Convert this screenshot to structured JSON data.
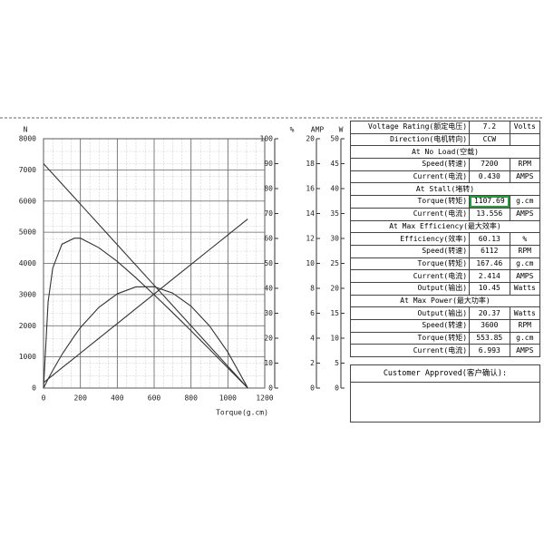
{
  "chart_data": {
    "type": "line",
    "xlabel": "Torque(g.cm)",
    "x": [
      0,
      25,
      50,
      100,
      167.46,
      200,
      300,
      400,
      500,
      600,
      700,
      800,
      900,
      1000,
      1100,
      1107.69
    ],
    "xlim": [
      0,
      1200
    ],
    "xticks": [
      0,
      200,
      400,
      600,
      800,
      1000,
      1200
    ],
    "ylabel": "N",
    "ylim": [
      0,
      8000
    ],
    "yticks": [
      0,
      1000,
      2000,
      3000,
      4000,
      5000,
      6000,
      7000,
      8000
    ],
    "y2label": "%",
    "y2lim": [
      0,
      100
    ],
    "y2ticks": [
      0,
      10,
      20,
      30,
      40,
      50,
      60,
      70,
      80,
      90,
      100
    ],
    "y3label": "AMP",
    "y3lim": [
      0,
      20
    ],
    "y3ticks": [
      0,
      2,
      4,
      6,
      8,
      10,
      12,
      14,
      16,
      18,
      20
    ],
    "y4label": "W",
    "y4lim": [
      0,
      50
    ],
    "y4ticks": [
      0,
      5,
      10,
      15,
      20,
      25,
      30,
      35,
      40,
      45,
      50
    ],
    "grid": true,
    "series": [
      {
        "color": "#333333",
        "axis": "y",
        "values": [
          7200,
          7037,
          6875,
          6550,
          6112,
          5900,
          5250,
          4600,
          3950,
          3300,
          2650,
          2000,
          1350,
          700,
          50,
          0
        ]
      },
      {
        "color": "#333333",
        "axis": "y3",
        "values": [
          0.43,
          0.73,
          1.02,
          1.62,
          2.41,
          2.8,
          3.99,
          5.17,
          6.36,
          7.54,
          8.73,
          9.91,
          11.1,
          12.28,
          13.47,
          13.56
        ]
      },
      {
        "color": "#333333",
        "axis": "y2",
        "values": [
          0,
          34.6,
          48.1,
          57.7,
          60.1,
          60.1,
          56.3,
          50.8,
          44.3,
          37.4,
          30.3,
          23.0,
          15.6,
          8.1,
          0.6,
          0
        ]
      },
      {
        "color": "#333333",
        "axis": "y4",
        "values": [
          0,
          1.81,
          3.53,
          6.73,
          10.45,
          12.12,
          16.17,
          18.9,
          20.28,
          20.33,
          19.05,
          16.43,
          12.48,
          7.19,
          0.56,
          0
        ]
      }
    ]
  },
  "table": {
    "rows": [
      [
        "Voltage Rating(额定电压)",
        "7.2",
        "Volts"
      ],
      [
        "Direction(电机转向)",
        "CCW",
        ""
      ],
      [
        "At No Load(空载)"
      ],
      [
        "Speed(转速)",
        "7200",
        "RPM"
      ],
      [
        "Current(电流)",
        "0.430",
        "AMPS"
      ],
      [
        "At Stall(堵转)"
      ],
      [
        "Torque(转矩)",
        "1107.69",
        "g.cm"
      ],
      [
        "Current(电流)",
        "13.556",
        "AMPS"
      ],
      [
        "At Max Efficiency(最大效率)"
      ],
      [
        "Efficiency(效率)",
        "60.13",
        "%"
      ],
      [
        "Speed(转速)",
        "6112",
        "RPM"
      ],
      [
        "Torque(转矩)",
        "167.46",
        "g.cm"
      ],
      [
        "Current(电流)",
        "2.414",
        "AMPS"
      ],
      [
        "Output(输出)",
        "10.45",
        "Watts"
      ],
      [
        "At Max Power(最大功率)"
      ],
      [
        "Output(输出)",
        "20.37",
        "Watts"
      ],
      [
        "Speed(转速)",
        "3600",
        "RPM"
      ],
      [
        "Torque(转矩)",
        "553.85",
        "g.cm"
      ],
      [
        "Current(电流)",
        "6.993",
        "AMPS"
      ]
    ],
    "customer": "Customer Approved(客户确认):"
  }
}
